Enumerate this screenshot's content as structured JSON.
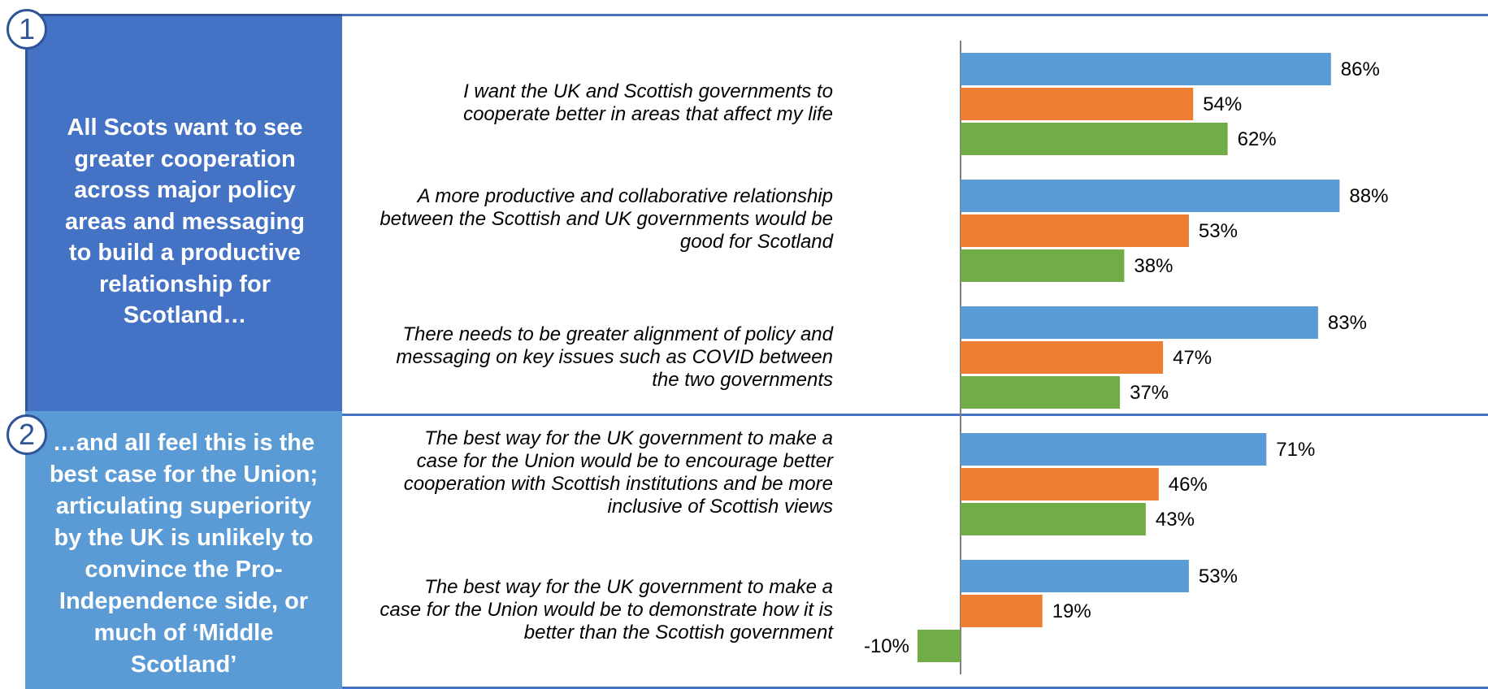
{
  "section1": {
    "badge": "1",
    "heading": "All Scots want to see greater cooperation across major policy areas and messaging to build a productive relationship for Scotland…"
  },
  "section2": {
    "badge": "2",
    "heading": "…and all feel this is the best case for the Union; articulating superiority by the UK is unlikely to convince the Pro-Independence side, or much of ‘Middle Scotland’"
  },
  "statements": [
    "I want the UK and Scottish governments to cooperate better in areas that affect my life",
    "A more productive and collaborative relationship between the Scottish and UK governments would be good for Scotland",
    "There needs to be greater alignment of policy and messaging on key issues such as COVID between the two governments",
    "The best way for the UK government to make a case for the Union would be to encourage better cooperation with Scottish institutions and be more inclusive of Scottish views",
    "The best way for the UK government to make a case for the Union would be to demonstrate how it is better than the Scottish government"
  ],
  "chart_data": {
    "type": "bar",
    "orientation": "horizontal",
    "categories": [
      "I want the UK and Scottish governments to cooperate better in areas that affect my life",
      "A more productive and collaborative relationship between the Scottish and UK governments would be good for Scotland",
      "There needs to be greater alignment of policy and messaging on key issues such as COVID between the two governments",
      "The best way for the UK government to make a case for the Union would be to encourage better cooperation with Scottish institutions and be more inclusive of Scottish views",
      "The best way for the UK government to make a case for the Union would be to demonstrate how it is better than the Scottish government"
    ],
    "series": [
      {
        "color": "#5b9bd5",
        "values": [
          86,
          88,
          83,
          71,
          53
        ],
        "labels": [
          "86%",
          "88%",
          "83%",
          "71%",
          "53%"
        ]
      },
      {
        "color": "#ed7d31",
        "values": [
          54,
          53,
          47,
          46,
          19
        ],
        "labels": [
          "54%",
          "53%",
          "47%",
          "46%",
          "19%"
        ]
      },
      {
        "color": "#70ad47",
        "values": [
          62,
          38,
          37,
          43,
          -10
        ],
        "labels": [
          "62%",
          "38%",
          "37%",
          "43%",
          "-10%"
        ]
      }
    ],
    "xlim": [
      -15,
      100
    ],
    "axis_color": "#808080",
    "grid": false,
    "legend": "none"
  }
}
